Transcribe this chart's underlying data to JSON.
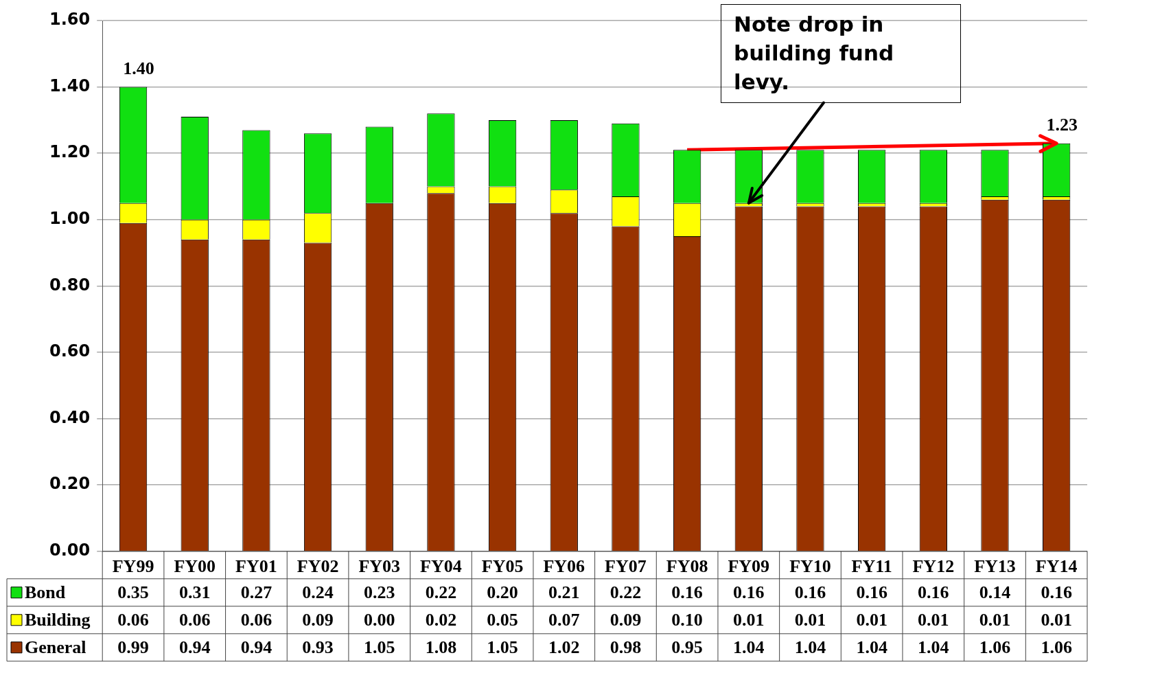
{
  "chart_data": {
    "type": "bar",
    "stacked": true,
    "categories": [
      "FY99",
      "FY00",
      "FY01",
      "FY02",
      "FY03",
      "FY04",
      "FY05",
      "FY06",
      "FY07",
      "FY08",
      "FY09",
      "FY10",
      "FY11",
      "FY12",
      "FY13",
      "FY14"
    ],
    "series": [
      {
        "name": "General",
        "color": "#993300",
        "values": [
          0.99,
          0.94,
          0.94,
          0.93,
          1.05,
          1.08,
          1.05,
          1.02,
          0.98,
          0.95,
          1.04,
          1.04,
          1.04,
          1.04,
          1.06,
          1.06
        ],
        "value_labels": [
          "0.99",
          "0.94",
          "0.94",
          "0.93",
          "1.05",
          "1.08",
          "1.05",
          "1.02",
          "0.98",
          "0.95",
          "1.04",
          "1.04",
          "1.04",
          "1.04",
          "1.06",
          "1.06"
        ]
      },
      {
        "name": "Building",
        "color": "#ffff00",
        "values": [
          0.06,
          0.06,
          0.06,
          0.09,
          0.0,
          0.02,
          0.05,
          0.07,
          0.09,
          0.1,
          0.01,
          0.01,
          0.01,
          0.01,
          0.01,
          0.01
        ],
        "value_labels": [
          "0.06",
          "0.06",
          "0.06",
          "0.09",
          "0.00",
          "0.02",
          "0.05",
          "0.07",
          "0.09",
          "0.10",
          "0.01",
          "0.01",
          "0.01",
          "0.01",
          "0.01",
          "0.01"
        ]
      },
      {
        "name": "Bond",
        "color": "#11e011",
        "values": [
          0.35,
          0.31,
          0.27,
          0.24,
          0.23,
          0.22,
          0.2,
          0.21,
          0.22,
          0.16,
          0.16,
          0.16,
          0.16,
          0.16,
          0.14,
          0.16
        ],
        "value_labels": [
          "0.35",
          "0.31",
          "0.27",
          "0.24",
          "0.23",
          "0.22",
          "0.20",
          "0.21",
          "0.22",
          "0.16",
          "0.16",
          "0.16",
          "0.16",
          "0.16",
          "0.14",
          "0.16"
        ]
      },
      {
        "type": "line",
        "color": "#ff0000",
        "values": [
          null,
          null,
          null,
          null,
          null,
          null,
          null,
          null,
          null,
          1.21,
          null,
          null,
          null,
          null,
          null,
          1.23
        ]
      }
    ],
    "totals": [
      "1.40",
      null,
      null,
      null,
      null,
      null,
      null,
      null,
      null,
      null,
      null,
      null,
      null,
      null,
      null,
      "1.23"
    ],
    "ylim": [
      0,
      1.6
    ],
    "yticks": [
      {
        "value": 0,
        "label": "0.00"
      },
      {
        "value": 0.2,
        "label": "0.20"
      },
      {
        "value": 0.4,
        "label": "0.40"
      },
      {
        "value": 0.6,
        "label": "0.60"
      },
      {
        "value": 0.8,
        "label": "0.80"
      },
      {
        "value": 1.0,
        "label": "1.00"
      },
      {
        "value": 1.2,
        "label": "1.20"
      },
      {
        "value": 1.4,
        "label": "1.40"
      },
      {
        "value": 1.6,
        "label": "1.60"
      }
    ],
    "grid": "y",
    "legend": "bottom",
    "marker": "none",
    "annotations": [
      {
        "text": "Note drop in building fund levy.",
        "x": "FY09",
        "y": 1.05
      }
    ]
  }
}
